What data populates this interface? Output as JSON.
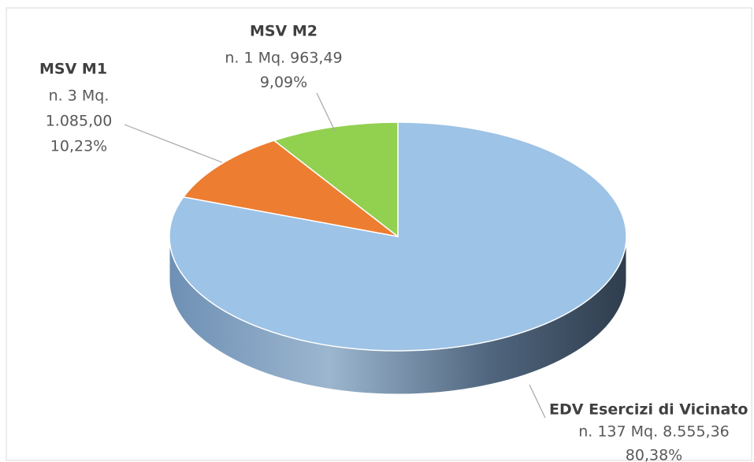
{
  "chart_data": {
    "type": "pie3d",
    "categories": [
      "EDV Esercizi di Vicinato",
      "MSV M1",
      "MSV M2"
    ],
    "values": [
      80.38,
      10.23,
      9.09
    ],
    "value_labels": [
      "80,38%",
      "10,23%",
      "9,09%"
    ],
    "details": [
      [
        "n. 137 Mq. 8.555,36"
      ],
      [
        "n. 3 Mq.",
        "1.085,00"
      ],
      [
        "n. 1 Mq. 963,49"
      ]
    ],
    "colors": [
      "#9dc3e6",
      "#ed7d31",
      "#92d050"
    ]
  }
}
